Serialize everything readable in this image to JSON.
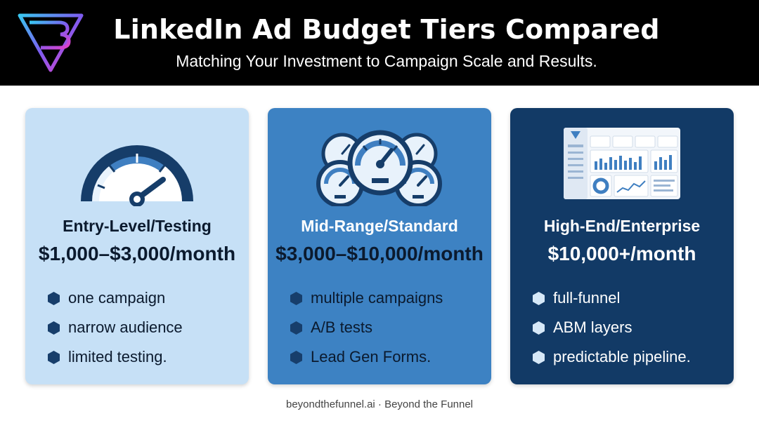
{
  "header": {
    "title": "LinkedIn Ad Budget Tiers Compared",
    "subtitle": "Matching Your Investment to Campaign Scale and Results."
  },
  "logo": {
    "icon": "funnel-logo-icon"
  },
  "tiers": [
    {
      "name": "Entry-Level/Testing",
      "price": "$1,000–$3,000/month",
      "icon": "single-gauge-icon",
      "bullets": [
        "one campaign",
        "narrow audience",
        "limited testing."
      ]
    },
    {
      "name": "Mid-Range/Standard",
      "price": "$3,000–$10,000/month",
      "icon": "multiple-gauges-icon",
      "bullets": [
        "multiple campaigns",
        "A/B tests",
        "Lead Gen Forms."
      ]
    },
    {
      "name": "High-End/Enterprise",
      "price": "$10,000+/month",
      "icon": "analytics-dashboard-icon",
      "bullets": [
        "full-funnel",
        "ABM layers",
        "predictable pipeline."
      ]
    }
  ],
  "footer": {
    "text": "beyondthefunnel.ai · Beyond the Funnel"
  },
  "colors": {
    "header_bg": "#000000",
    "card_entry": "#c6e0f6",
    "card_mid": "#3d82c3",
    "card_enterprise": "#123a66",
    "bullet_dark": "#173e6b",
    "bullet_light": "#d6e8f8"
  }
}
